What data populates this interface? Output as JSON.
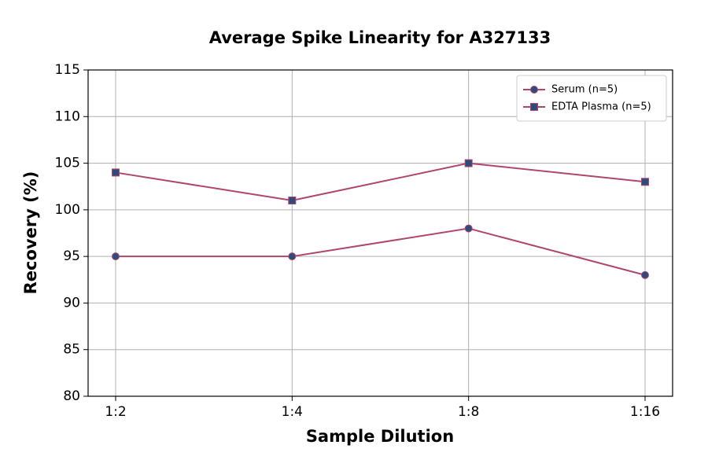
{
  "chart_data": {
    "type": "line",
    "title": "Average Spike Linearity for A327133",
    "x_label": "Sample Dilution",
    "y_label": "Recovery (%)",
    "categories": [
      "1:2",
      "1:4",
      "1:8",
      "1:16"
    ],
    "series": [
      {
        "name": "Serum (n=5)",
        "color": "#b0466e",
        "marker_color": "#2f4b7c",
        "marker": "circle",
        "values": [
          95,
          95,
          98,
          93
        ]
      },
      {
        "name": "EDTA Plasma (n=5)",
        "color": "#b0466e",
        "marker_color": "#2f4b7c",
        "marker": "square",
        "values": [
          104,
          101,
          105,
          103
        ]
      }
    ],
    "ylim": [
      80,
      115
    ],
    "yticks": [
      80,
      85,
      90,
      95,
      100,
      105,
      110,
      115
    ],
    "grid": true,
    "legend": "upper right"
  }
}
